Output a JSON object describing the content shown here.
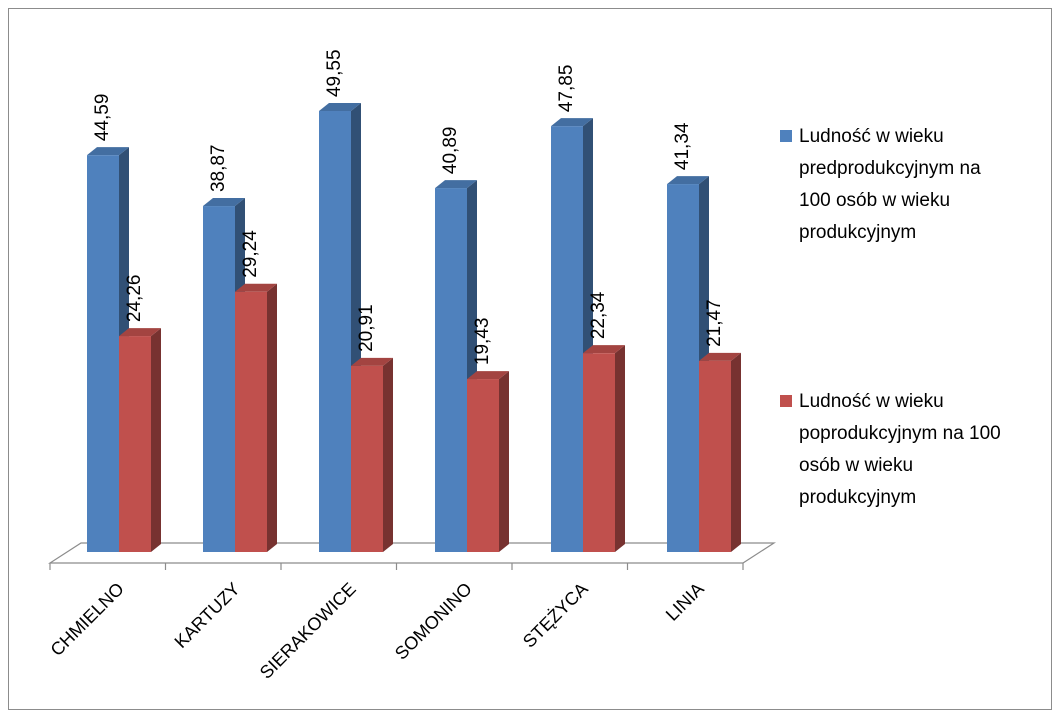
{
  "chart_data": {
    "type": "bar",
    "categories": [
      "CHMIELNO",
      "KARTUZY",
      "SIERAKOWICE",
      "SOMONINO",
      "STĘŻYCA",
      "LINIA"
    ],
    "series": [
      {
        "name": "Ludność w wieku predprodukcyjnym na 100 osób w wieku produkcyjnym",
        "legend_lines": [
          "Ludność w wieku",
          "predprodukcyjnym na",
          "100 osób w wieku",
          "produkcyjnym"
        ],
        "values": [
          44.59,
          38.87,
          49.55,
          40.89,
          47.85,
          41.34
        ],
        "labels": [
          "44,59",
          "38,87",
          "49,55",
          "40,89",
          "47,85",
          "41,34"
        ],
        "color": "#4f81bd"
      },
      {
        "name": "Ludność w wieku poprodukcyjnym na 100 osób w wieku produkcyjnym",
        "legend_lines": [
          "Ludność w wieku",
          "poprodukcyjnym na 100",
          "osób w wieku",
          "produkcyjnym"
        ],
        "values": [
          24.26,
          29.24,
          20.91,
          19.43,
          22.34,
          21.47
        ],
        "labels": [
          "24,26",
          "29,24",
          "20,91",
          "19,43",
          "22,34",
          "21,47"
        ],
        "color": "#c0504d"
      }
    ],
    "legend_position": "right",
    "grid": false,
    "style": "3d-clustered-column"
  }
}
